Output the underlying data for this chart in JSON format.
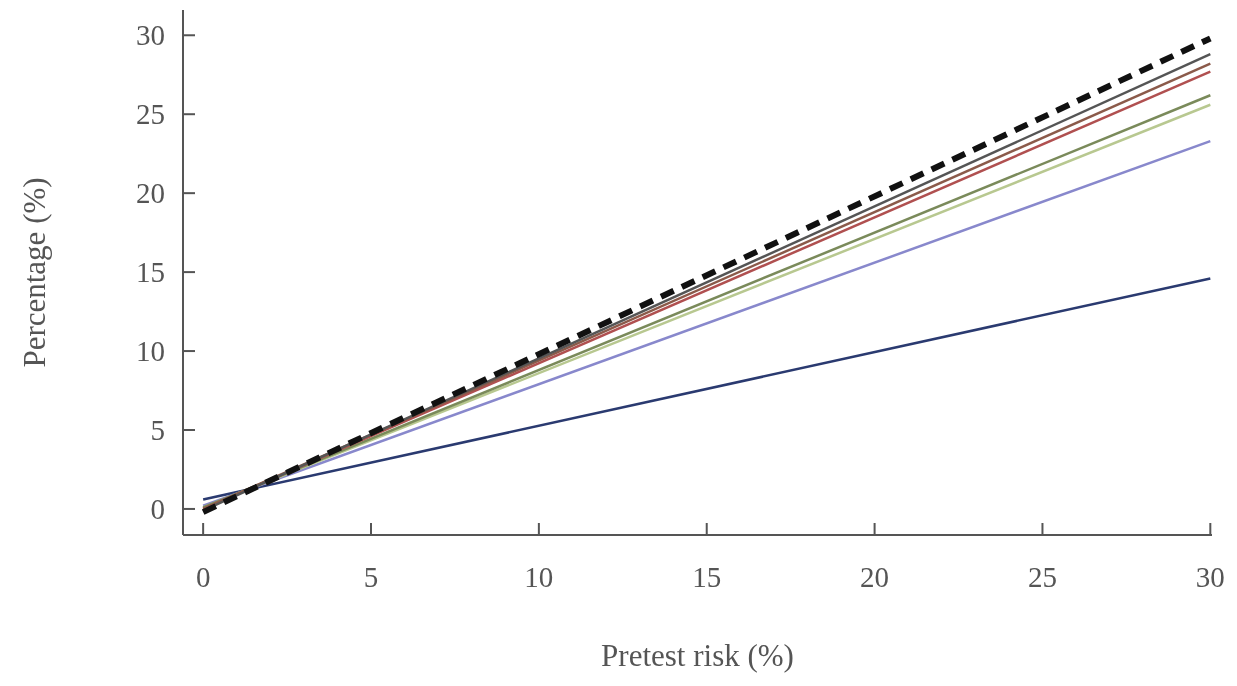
{
  "chart_data": {
    "type": "line",
    "xlabel": "Pretest risk (%)",
    "ylabel": "Percentage (%)",
    "x": [
      0,
      30
    ],
    "xlim": [
      -0.6,
      30.05
    ],
    "ylim": [
      -1.65,
      31.6
    ],
    "xticks": [
      0,
      5,
      10,
      15,
      20,
      25,
      30
    ],
    "yticks": [
      0,
      5,
      10,
      15,
      20,
      25,
      30
    ],
    "marker": "none",
    "series": [
      {
        "color": "#2a3a70",
        "values": [
          0.6,
          14.6
        ]
      },
      {
        "color": "#8888cc",
        "values": [
          0.2,
          23.3
        ]
      },
      {
        "color": "#b8c890",
        "values": [
          0.1,
          25.6
        ]
      },
      {
        "color": "#7a8a5a",
        "values": [
          0.1,
          26.2
        ]
      },
      {
        "color": "#b05050",
        "values": [
          0,
          27.7
        ]
      },
      {
        "color": "#8b5a4a",
        "values": [
          0,
          28.2
        ]
      },
      {
        "color": "#555555",
        "values": [
          -0.1,
          28.8
        ]
      },
      {
        "color": "#111111",
        "values": [
          -0.2,
          29.8
        ],
        "line_style": "dashed"
      }
    ]
  }
}
